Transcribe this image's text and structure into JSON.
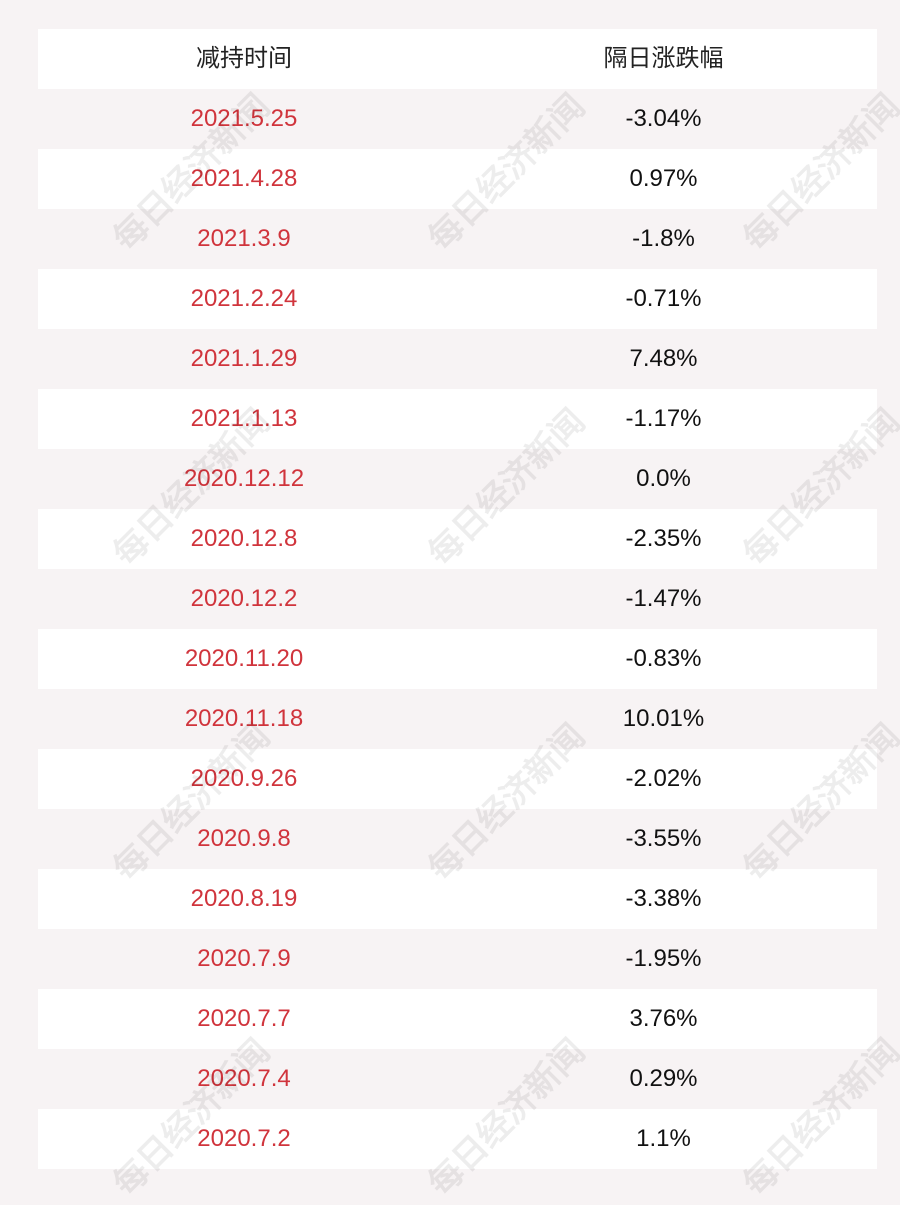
{
  "table": {
    "headers": [
      "减持时间",
      "隔日涨跌幅"
    ],
    "rows": [
      {
        "date": "2021.5.25",
        "change": "-3.04%"
      },
      {
        "date": "2021.4.28",
        "change": "0.97%"
      },
      {
        "date": "2021.3.9",
        "change": "-1.8%"
      },
      {
        "date": "2021.2.24",
        "change": "-0.71%"
      },
      {
        "date": "2021.1.29",
        "change": "7.48%"
      },
      {
        "date": "2021.1.13",
        "change": "-1.17%"
      },
      {
        "date": "2020.12.12",
        "change": "0.0%"
      },
      {
        "date": "2020.12.8",
        "change": "-2.35%"
      },
      {
        "date": "2020.12.2",
        "change": "-1.47%"
      },
      {
        "date": "2020.11.20",
        "change": "-0.83%"
      },
      {
        "date": "2020.11.18",
        "change": "10.01%"
      },
      {
        "date": "2020.9.26",
        "change": "-2.02%"
      },
      {
        "date": "2020.9.8",
        "change": "-3.55%"
      },
      {
        "date": "2020.8.19",
        "change": "-3.38%"
      },
      {
        "date": "2020.7.9",
        "change": "-1.95%"
      },
      {
        "date": "2020.7.7",
        "change": "3.76%"
      },
      {
        "date": "2020.7.4",
        "change": "0.29%"
      },
      {
        "date": "2020.7.2",
        "change": "1.1%"
      }
    ]
  },
  "watermark": {
    "text": "每日经济新闻"
  },
  "colors": {
    "date_text": "#d0343c",
    "value_text": "#111111",
    "header_text": "#222222",
    "row_white": "#ffffff",
    "row_tint": "#f7f3f4"
  }
}
